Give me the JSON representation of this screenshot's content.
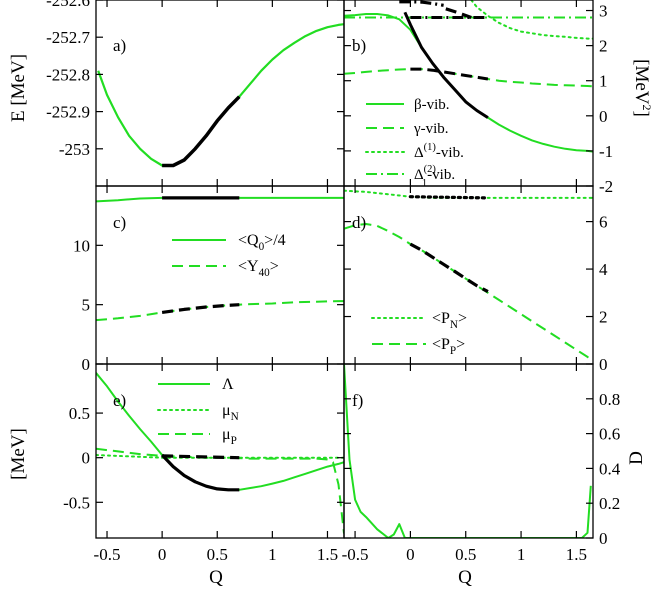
{
  "colors": {
    "green": "#22dd22",
    "black": "#000000"
  },
  "x_axis": {
    "label": "Q",
    "ticks": [
      "-0.5",
      "0",
      "0.5",
      "1",
      "1.5"
    ]
  },
  "chart_data": [
    {
      "id": "a",
      "panel_label": "a)",
      "type": "line",
      "ylabel": "E [MeV]",
      "xlim": [
        -0.6,
        1.65
      ],
      "ylim": [
        -253.1,
        -252.6
      ],
      "yticks": [
        -253.0,
        -252.9,
        -252.8,
        -252.7,
        -252.6
      ],
      "ytick_labels": [
        "-253",
        "-252.9",
        "-252.8",
        "-252.7",
        "-252.6"
      ],
      "series": [
        {
          "color": "green",
          "dash": "solid",
          "width": 2.2,
          "x": [
            -0.58,
            -0.5,
            -0.4,
            -0.3,
            -0.2,
            -0.1,
            0.0,
            0.1,
            0.2,
            0.3,
            0.4,
            0.5,
            0.6,
            0.7,
            0.8,
            0.9,
            1.0,
            1.1,
            1.2,
            1.3,
            1.4,
            1.5,
            1.6,
            1.65
          ],
          "y": [
            -252.79,
            -252.855,
            -252.915,
            -252.965,
            -253.0,
            -253.027,
            -253.045,
            -253.045,
            -253.03,
            -253.0,
            -252.965,
            -252.925,
            -252.89,
            -252.86,
            -252.825,
            -252.79,
            -252.76,
            -252.735,
            -252.715,
            -252.697,
            -252.683,
            -252.673,
            -252.667,
            -252.665
          ]
        },
        {
          "color": "black",
          "dash": "solid",
          "width": 3.5,
          "x": [
            0.0,
            0.1,
            0.2,
            0.3,
            0.4,
            0.5,
            0.6,
            0.7
          ],
          "y": [
            -253.045,
            -253.045,
            -253.03,
            -253.0,
            -252.965,
            -252.925,
            -252.89,
            -252.86
          ]
        }
      ]
    },
    {
      "id": "b",
      "panel_label": "b)",
      "type": "line",
      "ylabel_right": "[MeV²]",
      "ylabel_right_base": "[MeV",
      "ylabel_right_sup": "2",
      "ylabel_right_end": "]",
      "xlim": [
        -0.6,
        1.65
      ],
      "ylim": [
        -2,
        3.3
      ],
      "yticks": [
        -2,
        -1,
        0,
        1,
        2,
        3
      ],
      "ytick_labels": [
        "-2",
        "-1",
        "0",
        "1",
        "2",
        "3"
      ],
      "legend_position": "bottom-left",
      "series": [
        {
          "name": "β-vib.",
          "legend_text": "β-vib.",
          "color": "green",
          "dash": "solid",
          "width": 2,
          "x": [
            -0.6,
            -0.5,
            -0.4,
            -0.3,
            -0.2,
            -0.1,
            0.0,
            0.1,
            0.2,
            0.3,
            0.4,
            0.5,
            0.6,
            0.7,
            0.8,
            0.9,
            1.0,
            1.1,
            1.2,
            1.3,
            1.4,
            1.5,
            1.6,
            1.65
          ],
          "y": [
            2.85,
            2.87,
            2.9,
            2.9,
            2.86,
            2.75,
            2.45,
            1.95,
            1.5,
            1.1,
            0.75,
            0.4,
            0.15,
            -0.05,
            -0.25,
            -0.42,
            -0.57,
            -0.7,
            -0.8,
            -0.88,
            -0.94,
            -0.98,
            -1.0,
            -1.02
          ]
        },
        {
          "name": "γ-vib.",
          "legend_text": "γ-vib.",
          "color": "green",
          "dash": "dash",
          "width": 2,
          "x": [
            -0.6,
            -0.5,
            -0.4,
            -0.3,
            -0.2,
            -0.1,
            0.0,
            0.1,
            0.2,
            0.3,
            0.4,
            0.5,
            0.6,
            0.7,
            0.8,
            0.9,
            1.0,
            1.1,
            1.2,
            1.3,
            1.4,
            1.5,
            1.6,
            1.65
          ],
          "y": [
            1.2,
            1.22,
            1.25,
            1.28,
            1.3,
            1.32,
            1.33,
            1.33,
            1.3,
            1.25,
            1.2,
            1.15,
            1.1,
            1.05,
            1.0,
            0.97,
            0.95,
            0.92,
            0.9,
            0.88,
            0.87,
            0.86,
            0.85,
            0.84
          ]
        },
        {
          "name": "Δ(1)-vib.",
          "legend_text": "Δ",
          "legend_sup": "(1)",
          "legend_end": "-vib.",
          "color": "green",
          "dash": "dot",
          "width": 2,
          "x": [
            0.55,
            0.6,
            0.7,
            0.8,
            0.9,
            1.0,
            1.1,
            1.2,
            1.3,
            1.4,
            1.5,
            1.6,
            1.65
          ],
          "y": [
            3.3,
            3.1,
            2.85,
            2.65,
            2.5,
            2.4,
            2.35,
            2.3,
            2.27,
            2.25,
            2.22,
            2.2,
            2.2
          ]
        },
        {
          "name": "Δ1(2)-vib.",
          "legend_text": "Δ",
          "legend_sup": "(2)",
          "legend_sub": "1",
          "legend_end": "-vib.",
          "color": "green",
          "dash": "dashdot",
          "width": 2,
          "x": [
            -0.6,
            -0.4,
            -0.2,
            0.0,
            0.2,
            0.4,
            0.6,
            0.8,
            1.0,
            1.2,
            1.4,
            1.6,
            1.65
          ],
          "y": [
            2.8,
            2.8,
            2.8,
            2.8,
            2.8,
            2.8,
            2.8,
            2.8,
            2.8,
            2.8,
            2.8,
            2.8,
            2.8
          ]
        },
        {
          "color": "black",
          "dash": "solid",
          "width": 3,
          "x": [
            -0.05,
            0.0,
            0.1,
            0.2,
            0.3,
            0.4,
            0.5,
            0.6,
            0.7
          ],
          "y": [
            2.95,
            2.6,
            1.95,
            1.5,
            1.1,
            0.75,
            0.4,
            0.15,
            -0.05
          ]
        },
        {
          "color": "black",
          "dash": "dash",
          "width": 3,
          "x": [
            0.0,
            0.1,
            0.2,
            0.3,
            0.4,
            0.5,
            0.6,
            0.7
          ],
          "y": [
            1.33,
            1.33,
            1.3,
            1.25,
            1.2,
            1.15,
            1.1,
            1.05
          ]
        },
        {
          "color": "black",
          "dash": "dashdot",
          "width": 3,
          "x": [
            0.0,
            0.1,
            0.2,
            0.3,
            0.4,
            0.5,
            0.6,
            0.7
          ],
          "y": [
            2.8,
            2.8,
            2.8,
            2.8,
            2.8,
            2.8,
            2.8,
            2.8
          ]
        },
        {
          "color": "black",
          "dash": "dashdot",
          "width": 3.2,
          "x": [
            -0.1,
            0.0,
            0.1,
            0.2,
            0.3
          ],
          "y": [
            3.25,
            3.25,
            3.24,
            3.2,
            3.15
          ]
        },
        {
          "color": "black",
          "dash": "dash",
          "width": 3.2,
          "x": [
            0.32,
            0.42,
            0.55
          ],
          "y": [
            3.05,
            2.95,
            2.8
          ]
        }
      ]
    },
    {
      "id": "c",
      "panel_label": "c)",
      "type": "line",
      "xlim": [
        -0.6,
        1.65
      ],
      "ylim": [
        0,
        15
      ],
      "yticks": [
        0,
        5,
        10
      ],
      "ytick_labels": [
        "0",
        "5",
        "10"
      ],
      "legend_position": "center",
      "series": [
        {
          "name": "<Q0>/4",
          "legend_text": "<Q",
          "legend_sub": "0",
          "legend_end": ">/4",
          "color": "green",
          "dash": "solid",
          "width": 2,
          "x": [
            -0.6,
            -0.4,
            -0.2,
            0.0,
            0.2,
            0.4,
            0.6,
            0.8,
            1.0,
            1.2,
            1.4,
            1.6,
            1.65
          ],
          "y": [
            13.7,
            13.8,
            13.95,
            14.0,
            14.0,
            14.0,
            14.0,
            14.0,
            14.0,
            14.0,
            14.0,
            14.0,
            14.0
          ]
        },
        {
          "name": "<Y40>",
          "legend_text": "<Y",
          "legend_sub": "40",
          "legend_end": ">",
          "color": "green",
          "dash": "dash",
          "width": 2,
          "x": [
            -0.6,
            -0.4,
            -0.2,
            0.0,
            0.2,
            0.4,
            0.6,
            0.8,
            1.0,
            1.2,
            1.4,
            1.6,
            1.65
          ],
          "y": [
            3.7,
            3.85,
            4.05,
            4.35,
            4.6,
            4.8,
            4.95,
            5.05,
            5.1,
            5.2,
            5.25,
            5.3,
            5.3
          ]
        },
        {
          "color": "black",
          "dash": "solid",
          "width": 3.2,
          "x": [
            0.0,
            0.7
          ],
          "y": [
            14.0,
            14.0
          ]
        },
        {
          "color": "black",
          "dash": "dash",
          "width": 3.2,
          "x": [
            0.0,
            0.2,
            0.4,
            0.6,
            0.7
          ],
          "y": [
            4.35,
            4.6,
            4.8,
            4.95,
            5.0
          ]
        }
      ]
    },
    {
      "id": "d",
      "panel_label": "d)",
      "type": "line",
      "xlim": [
        -0.6,
        1.65
      ],
      "ylim": [
        0,
        7.5
      ],
      "yticks": [
        0,
        2,
        4,
        6
      ],
      "ytick_labels": [
        "0",
        "2",
        "4",
        "6"
      ],
      "legend_position": "bottom-left",
      "series": [
        {
          "name": "<PN>",
          "legend_text": "<P",
          "legend_sub": "N",
          "legend_end": ">",
          "color": "green",
          "dash": "dot",
          "width": 2,
          "x": [
            -0.6,
            -0.4,
            -0.2,
            0.0,
            0.2,
            0.4,
            0.6,
            0.8,
            1.0,
            1.2,
            1.4,
            1.6,
            1.65
          ],
          "y": [
            7.3,
            7.25,
            7.15,
            7.05,
            7.0,
            7.0,
            7.0,
            7.0,
            7.0,
            7.0,
            7.0,
            7.0,
            7.0
          ]
        },
        {
          "name": "<PP>",
          "legend_text": "<P",
          "legend_sub": "P",
          "legend_end": ">",
          "color": "green",
          "dash": "dash",
          "width": 2,
          "x": [
            -0.6,
            -0.5,
            -0.4,
            -0.3,
            -0.2,
            -0.1,
            0.0,
            0.1,
            0.2,
            0.3,
            0.4,
            0.5,
            0.6,
            0.7,
            0.8,
            0.9,
            1.0,
            1.1,
            1.2,
            1.3,
            1.4,
            1.5,
            1.6,
            1.65
          ],
          "y": [
            5.7,
            5.85,
            5.9,
            5.82,
            5.6,
            5.35,
            5.05,
            4.8,
            4.5,
            4.2,
            3.9,
            3.6,
            3.3,
            3.0,
            2.7,
            2.4,
            2.1,
            1.8,
            1.5,
            1.2,
            0.9,
            0.6,
            0.3,
            0.1
          ]
        },
        {
          "color": "black",
          "dash": "dash",
          "width": 3.2,
          "x": [
            0.0,
            0.1,
            0.2,
            0.3,
            0.4,
            0.5,
            0.6,
            0.7
          ],
          "y": [
            5.05,
            4.8,
            4.5,
            4.2,
            3.9,
            3.6,
            3.3,
            3.05
          ]
        },
        {
          "color": "black",
          "dash": "dot",
          "width": 3.2,
          "x": [
            0.0,
            0.7
          ],
          "y": [
            7.05,
            7.0
          ]
        }
      ]
    },
    {
      "id": "e",
      "panel_label": "e)",
      "type": "line",
      "ylabel": "[MeV]",
      "xlim": [
        -0.6,
        1.65
      ],
      "ylim": [
        -0.9,
        1.05
      ],
      "yticks": [
        -0.5,
        0,
        0.5
      ],
      "ytick_labels": [
        "-0.5",
        "0",
        "0.5"
      ],
      "legend_position": "top-center",
      "series": [
        {
          "name": "Λ",
          "legend_text": "Λ",
          "color": "green",
          "dash": "solid",
          "width": 2,
          "x": [
            -0.6,
            -0.5,
            -0.4,
            -0.3,
            -0.2,
            -0.1,
            0.0,
            0.1,
            0.2,
            0.3,
            0.4,
            0.5,
            0.6,
            0.7,
            0.8,
            0.9,
            1.0,
            1.1,
            1.2,
            1.3,
            1.4,
            1.5,
            1.6,
            1.65
          ],
          "y": [
            0.95,
            0.8,
            0.63,
            0.47,
            0.32,
            0.18,
            0.03,
            -0.1,
            -0.2,
            -0.27,
            -0.32,
            -0.35,
            -0.36,
            -0.36,
            -0.34,
            -0.32,
            -0.29,
            -0.26,
            -0.22,
            -0.18,
            -0.14,
            -0.1,
            -0.07,
            -0.05
          ]
        },
        {
          "name": "μN",
          "legend_text": "μ",
          "legend_sub": "N",
          "color": "green",
          "dash": "dot",
          "width": 2,
          "x": [
            -0.6,
            -0.4,
            -0.2,
            0.0,
            0.2,
            0.4,
            0.6,
            0.8,
            1.0,
            1.2,
            1.4,
            1.6,
            1.65
          ],
          "y": [
            0.03,
            0.02,
            0.01,
            0.0,
            0.0,
            0.0,
            0.0,
            0.0,
            0.0,
            0.0,
            0.0,
            0.0,
            0.0
          ]
        },
        {
          "name": "μP",
          "legend_text": "μ",
          "legend_sub": "P",
          "color": "green",
          "dash": "dash",
          "width": 2,
          "x": [
            -0.6,
            -0.4,
            -0.2,
            0.0,
            0.2,
            0.4,
            0.6,
            0.8,
            1.0,
            1.2,
            1.4,
            1.5,
            1.55,
            1.6,
            1.65
          ],
          "y": [
            0.1,
            0.07,
            0.04,
            0.02,
            0.01,
            0.0,
            0.0,
            -0.01,
            -0.01,
            -0.01,
            -0.01,
            -0.02,
            -0.05,
            -0.3,
            -0.85
          ]
        },
        {
          "color": "black",
          "dash": "solid",
          "width": 3.2,
          "x": [
            0.0,
            0.1,
            0.2,
            0.3,
            0.4,
            0.5,
            0.6,
            0.7
          ],
          "y": [
            0.03,
            -0.1,
            -0.2,
            -0.27,
            -0.32,
            -0.35,
            -0.36,
            -0.36
          ]
        },
        {
          "color": "black",
          "dash": "dash",
          "width": 3.2,
          "x": [
            0.0,
            0.7
          ],
          "y": [
            0.02,
            0.0
          ]
        }
      ]
    },
    {
      "id": "f",
      "panel_label": "f)",
      "type": "line",
      "ylabel_right": "D",
      "xlim": [
        -0.6,
        1.65
      ],
      "ylim": [
        0,
        1.0
      ],
      "yticks": [
        0,
        0.2,
        0.4,
        0.6,
        0.8
      ],
      "ytick_labels": [
        "0",
        "0.2",
        "0.4",
        "0.6",
        "0.8"
      ],
      "series": [
        {
          "color": "green",
          "dash": "solid",
          "width": 2,
          "x": [
            -0.6,
            -0.55,
            -0.5,
            -0.45,
            -0.4,
            -0.3,
            -0.2,
            -0.15,
            -0.1,
            -0.05,
            0.0,
            0.2,
            0.4,
            0.6,
            0.8,
            1.0,
            1.2,
            1.4,
            1.55,
            1.6,
            1.63
          ],
          "y": [
            1.0,
            0.45,
            0.22,
            0.15,
            0.12,
            0.05,
            0.0,
            0.02,
            0.08,
            0.0,
            0.0,
            0.0,
            0.0,
            0.0,
            0.0,
            0.0,
            0.0,
            0.0,
            0.0,
            0.03,
            0.3
          ]
        }
      ]
    }
  ]
}
